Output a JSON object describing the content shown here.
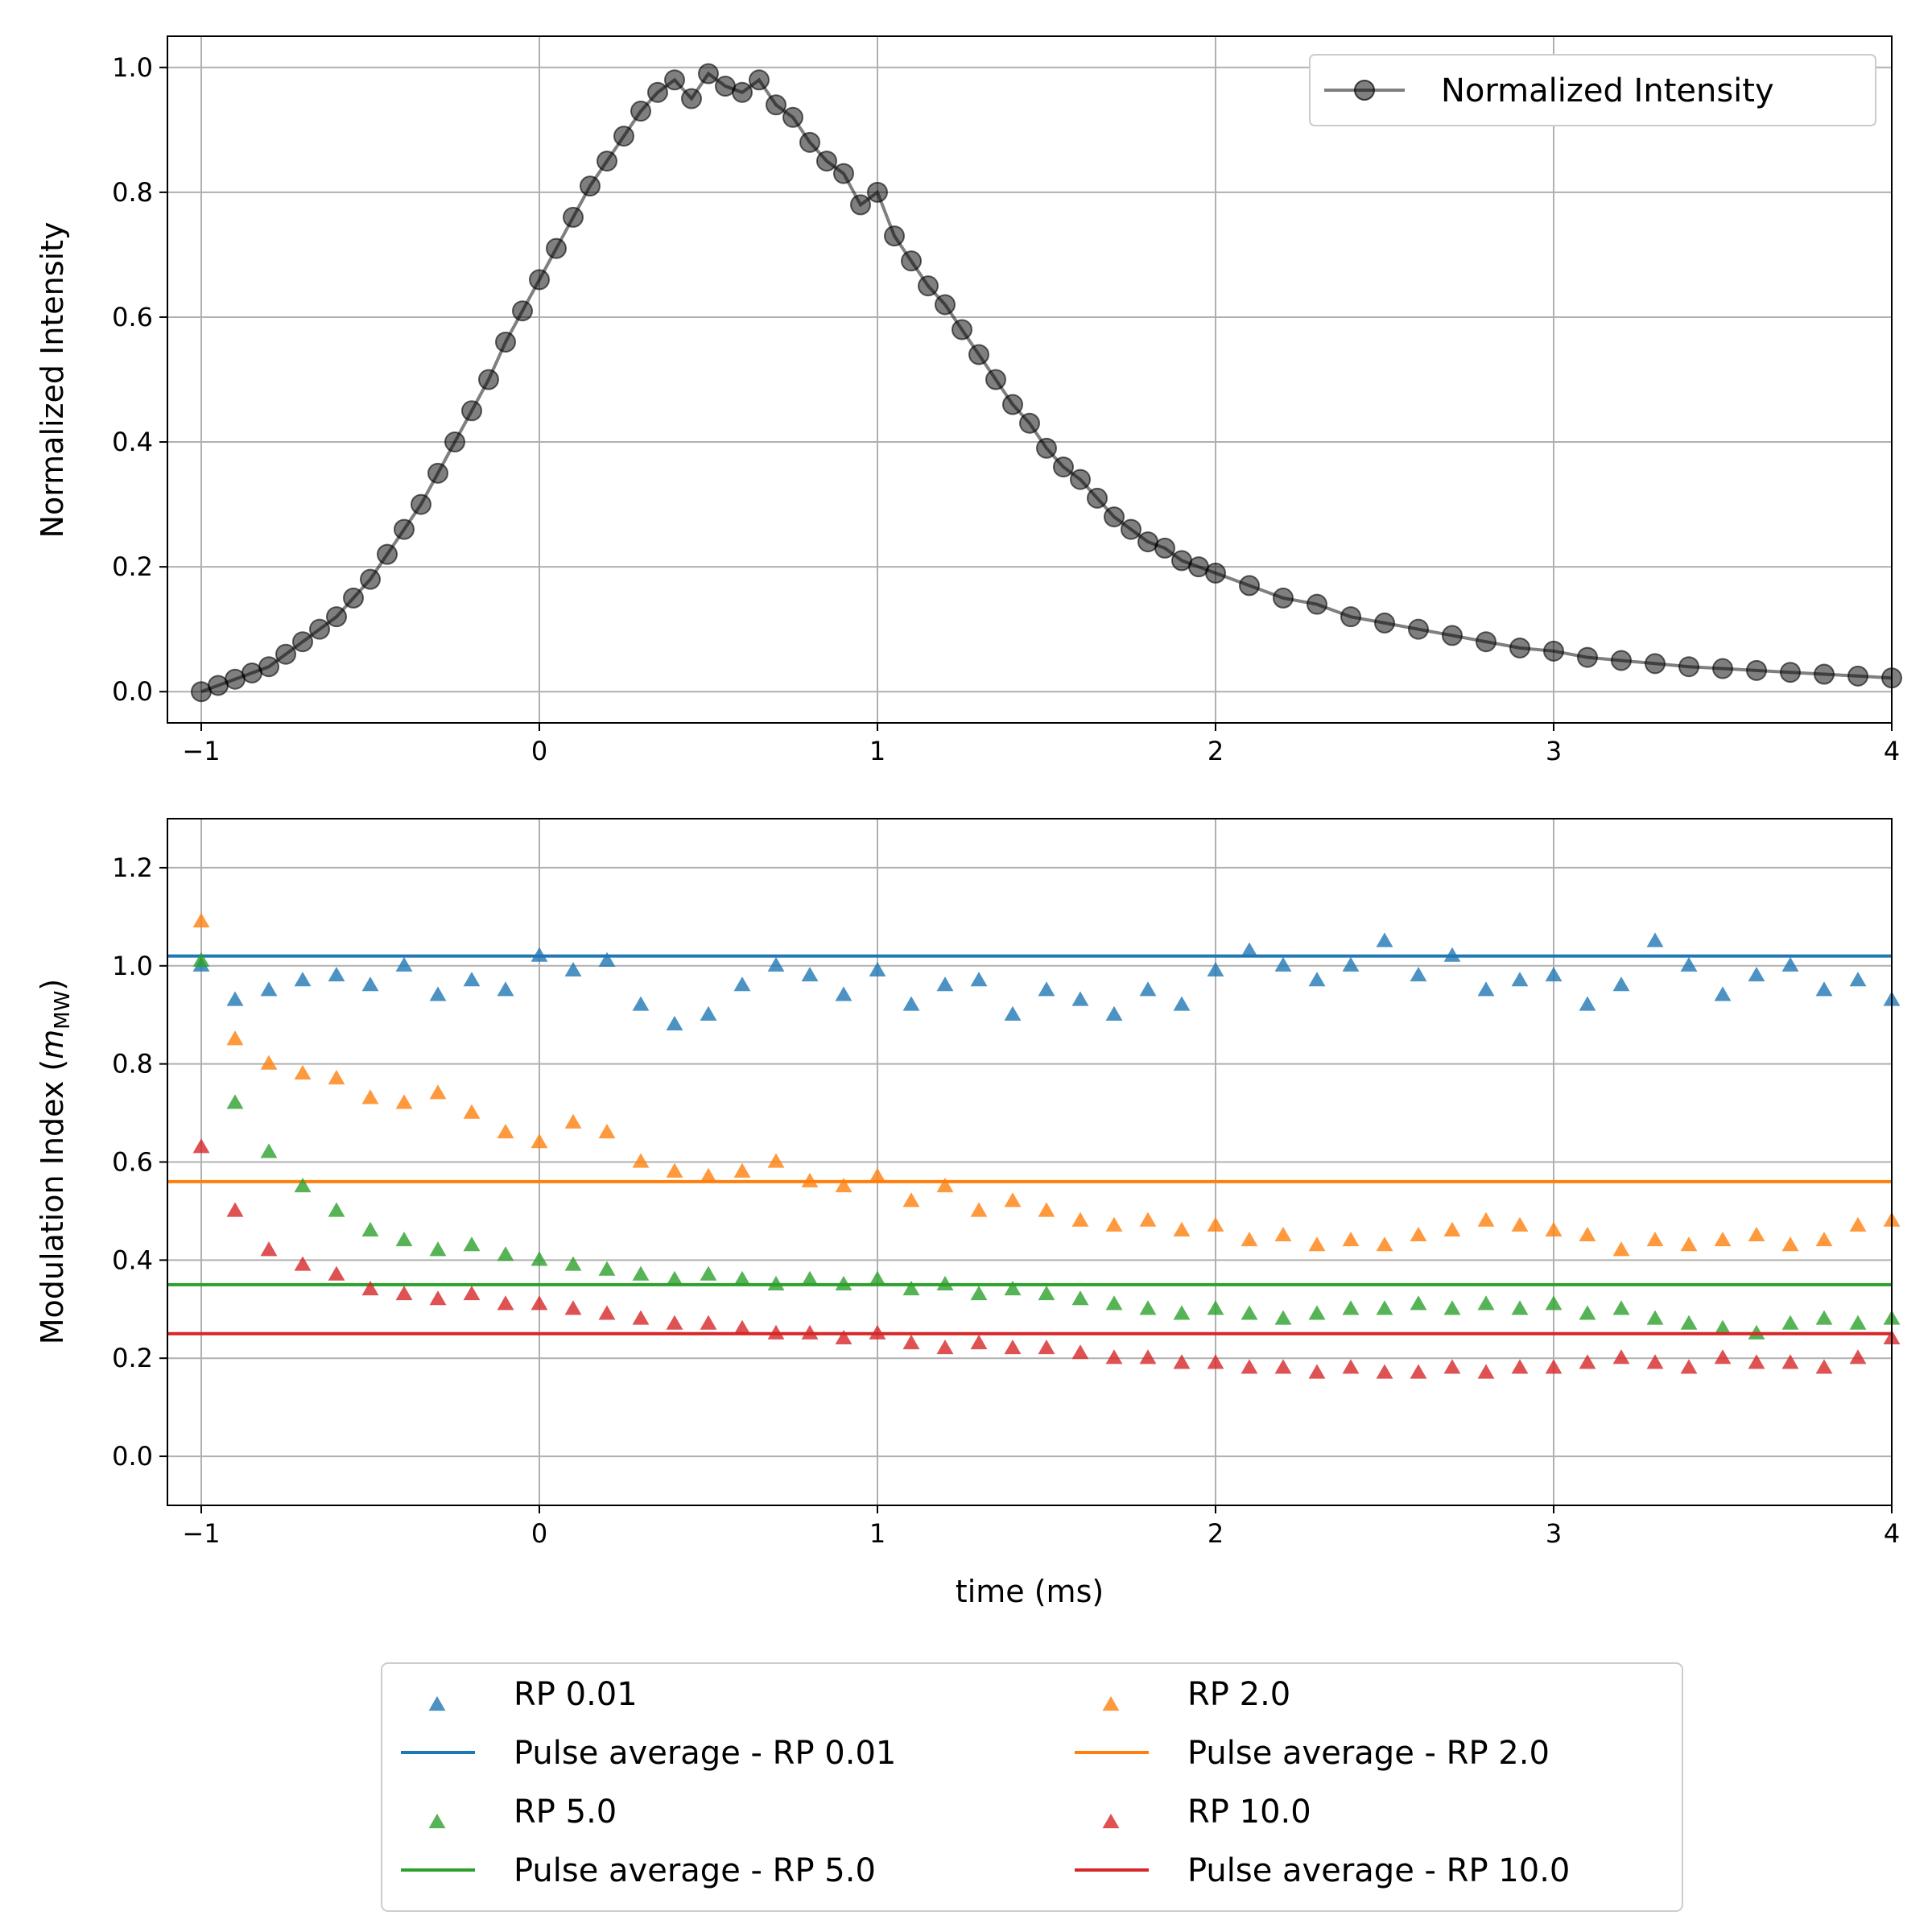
{
  "chart_data": [
    {
      "type": "line",
      "xlabel": "",
      "ylabel": "Normalized Intensity",
      "xlim": [
        -1.1,
        4.0
      ],
      "ylim": [
        -0.05,
        1.05
      ],
      "xticks": [
        -1,
        0,
        1,
        2,
        3,
        4
      ],
      "xtick_labels": [
        "−1",
        "0",
        "1",
        "2",
        "3",
        "4"
      ],
      "yticks": [
        0.0,
        0.2,
        0.4,
        0.6,
        0.8,
        1.0
      ],
      "ytick_labels": [
        "0.0",
        "0.2",
        "0.4",
        "0.6",
        "0.8",
        "1.0"
      ],
      "grid": true,
      "legend_position": "top-right",
      "series": [
        {
          "name": "Normalized Intensity",
          "color": "#000000",
          "marker": "circle",
          "x": [
            -1.0,
            -0.95,
            -0.9,
            -0.85,
            -0.8,
            -0.75,
            -0.7,
            -0.65,
            -0.6,
            -0.55,
            -0.5,
            -0.45,
            -0.4,
            -0.35,
            -0.3,
            -0.25,
            -0.2,
            -0.15,
            -0.1,
            -0.05,
            0.0,
            0.05,
            0.1,
            0.15,
            0.2,
            0.25,
            0.3,
            0.35,
            0.4,
            0.45,
            0.5,
            0.55,
            0.6,
            0.65,
            0.7,
            0.75,
            0.8,
            0.85,
            0.9,
            0.95,
            1.0,
            1.05,
            1.1,
            1.15,
            1.2,
            1.25,
            1.3,
            1.35,
            1.4,
            1.45,
            1.5,
            1.55,
            1.6,
            1.65,
            1.7,
            1.75,
            1.8,
            1.85,
            1.9,
            1.95,
            2.0,
            2.1,
            2.2,
            2.3,
            2.4,
            2.5,
            2.6,
            2.7,
            2.8,
            2.9,
            3.0,
            3.1,
            3.2,
            3.3,
            3.4,
            3.5,
            3.6,
            3.7,
            3.8,
            3.9,
            4.0
          ],
          "y": [
            0.0,
            0.01,
            0.02,
            0.03,
            0.04,
            0.06,
            0.08,
            0.1,
            0.12,
            0.15,
            0.18,
            0.22,
            0.26,
            0.3,
            0.35,
            0.4,
            0.45,
            0.5,
            0.56,
            0.61,
            0.66,
            0.71,
            0.76,
            0.81,
            0.85,
            0.89,
            0.93,
            0.96,
            0.98,
            0.95,
            0.99,
            0.97,
            0.96,
            0.98,
            0.94,
            0.92,
            0.88,
            0.85,
            0.83,
            0.78,
            0.8,
            0.73,
            0.69,
            0.65,
            0.62,
            0.58,
            0.54,
            0.5,
            0.46,
            0.43,
            0.39,
            0.36,
            0.34,
            0.31,
            0.28,
            0.26,
            0.24,
            0.23,
            0.21,
            0.2,
            0.19,
            0.17,
            0.15,
            0.14,
            0.12,
            0.11,
            0.1,
            0.09,
            0.08,
            0.07,
            0.065,
            0.055,
            0.05,
            0.045,
            0.04,
            0.037,
            0.034,
            0.031,
            0.028,
            0.025,
            0.022
          ]
        }
      ]
    },
    {
      "type": "scatter",
      "xlabel": "time (ms)",
      "ylabel": "Modulation Index (",
      "ylabel_var": "m",
      "ylabel_sub": "MW",
      "ylabel_end": ")",
      "xlim": [
        -1.1,
        4.0
      ],
      "ylim": [
        -0.1,
        1.3
      ],
      "xticks": [
        -1,
        0,
        1,
        2,
        3,
        4
      ],
      "xtick_labels": [
        "−1",
        "0",
        "1",
        "2",
        "3",
        "4"
      ],
      "yticks": [
        0.0,
        0.2,
        0.4,
        0.6,
        0.8,
        1.0,
        1.2
      ],
      "ytick_labels": [
        "0.0",
        "0.2",
        "0.4",
        "0.6",
        "0.8",
        "1.0",
        "1.2"
      ],
      "grid": true,
      "legend_position": "bottom-outside",
      "x": [
        -1.0,
        -0.9,
        -0.8,
        -0.7,
        -0.6,
        -0.5,
        -0.4,
        -0.3,
        -0.2,
        -0.1,
        0.0,
        0.1,
        0.2,
        0.3,
        0.4,
        0.5,
        0.6,
        0.7,
        0.8,
        0.9,
        1.0,
        1.1,
        1.2,
        1.3,
        1.4,
        1.5,
        1.6,
        1.7,
        1.8,
        1.9,
        2.0,
        2.1,
        2.2,
        2.3,
        2.4,
        2.5,
        2.6,
        2.7,
        2.8,
        2.9,
        3.0,
        3.1,
        3.2,
        3.3,
        3.4,
        3.5,
        3.6,
        3.7,
        3.8,
        3.9,
        4.0
      ],
      "series": [
        {
          "name": "RP 0.01",
          "color": "#1f77b4",
          "average": 1.02,
          "average_label": "Pulse average - RP 0.01",
          "values": [
            1.0,
            0.93,
            0.95,
            0.97,
            0.98,
            0.96,
            1.0,
            0.94,
            0.97,
            0.95,
            1.02,
            0.99,
            1.01,
            0.92,
            0.88,
            0.9,
            0.96,
            1.0,
            0.98,
            0.94,
            0.99,
            0.92,
            0.96,
            0.97,
            0.9,
            0.95,
            0.93,
            0.9,
            0.95,
            0.92,
            0.99,
            1.03,
            1.0,
            0.97,
            1.0,
            1.05,
            0.98,
            1.02,
            0.95,
            0.97,
            0.98,
            0.92,
            0.96,
            1.05,
            1.0,
            0.94,
            0.98,
            1.0,
            0.95,
            0.97,
            0.93
          ]
        },
        {
          "name": "RP 2.0",
          "color": "#ff7f0e",
          "average": 0.56,
          "average_label": "Pulse average - RP 2.0",
          "values": [
            1.09,
            0.85,
            0.8,
            0.78,
            0.77,
            0.73,
            0.72,
            0.74,
            0.7,
            0.66,
            0.64,
            0.68,
            0.66,
            0.6,
            0.58,
            0.57,
            0.58,
            0.6,
            0.56,
            0.55,
            0.57,
            0.52,
            0.55,
            0.5,
            0.52,
            0.5,
            0.48,
            0.47,
            0.48,
            0.46,
            0.47,
            0.44,
            0.45,
            0.43,
            0.44,
            0.43,
            0.45,
            0.46,
            0.48,
            0.47,
            0.46,
            0.45,
            0.42,
            0.44,
            0.43,
            0.44,
            0.45,
            0.43,
            0.44,
            0.47,
            0.48
          ]
        },
        {
          "name": "RP 5.0",
          "color": "#2ca02c",
          "average": 0.35,
          "average_label": "Pulse average - RP 5.0",
          "values": [
            1.01,
            0.72,
            0.62,
            0.55,
            0.5,
            0.46,
            0.44,
            0.42,
            0.43,
            0.41,
            0.4,
            0.39,
            0.38,
            0.37,
            0.36,
            0.37,
            0.36,
            0.35,
            0.36,
            0.35,
            0.36,
            0.34,
            0.35,
            0.33,
            0.34,
            0.33,
            0.32,
            0.31,
            0.3,
            0.29,
            0.3,
            0.29,
            0.28,
            0.29,
            0.3,
            0.3,
            0.31,
            0.3,
            0.31,
            0.3,
            0.31,
            0.29,
            0.3,
            0.28,
            0.27,
            0.26,
            0.25,
            0.27,
            0.28,
            0.27,
            0.28
          ]
        },
        {
          "name": "RP 10.0",
          "color": "#d62728",
          "average": 0.25,
          "average_label": "Pulse average - RP 10.0",
          "values": [
            0.63,
            0.5,
            0.42,
            0.39,
            0.37,
            0.34,
            0.33,
            0.32,
            0.33,
            0.31,
            0.31,
            0.3,
            0.29,
            0.28,
            0.27,
            0.27,
            0.26,
            0.25,
            0.25,
            0.24,
            0.25,
            0.23,
            0.22,
            0.23,
            0.22,
            0.22,
            0.21,
            0.2,
            0.2,
            0.19,
            0.19,
            0.18,
            0.18,
            0.17,
            0.18,
            0.17,
            0.17,
            0.18,
            0.17,
            0.18,
            0.18,
            0.19,
            0.2,
            0.19,
            0.18,
            0.2,
            0.19,
            0.19,
            0.18,
            0.2,
            0.24
          ]
        }
      ]
    }
  ]
}
